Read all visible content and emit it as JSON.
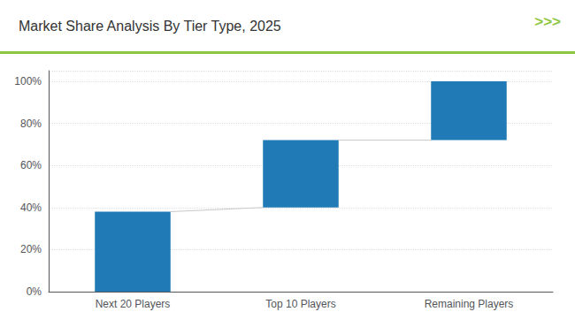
{
  "chart_data": {
    "type": "bar",
    "title": "Market Share Analysis By Tier Type, 2025",
    "annotation": ">>>",
    "categories": [
      "Next 20 Players",
      "Top 10 Players",
      "Remaining Players"
    ],
    "values": [
      38,
      32,
      28
    ],
    "bottoms": [
      0,
      40,
      72
    ],
    "color": "#1F7AB5",
    "ylim": [
      0,
      105
    ],
    "yticks": [
      {
        "value": 0,
        "label": "0%"
      },
      {
        "value": 20,
        "label": "20%"
      },
      {
        "value": 40,
        "label": "40%"
      },
      {
        "value": 60,
        "label": "60%"
      },
      {
        "value": 80,
        "label": "80%"
      },
      {
        "value": 100,
        "label": "100%"
      }
    ],
    "grid": true
  }
}
